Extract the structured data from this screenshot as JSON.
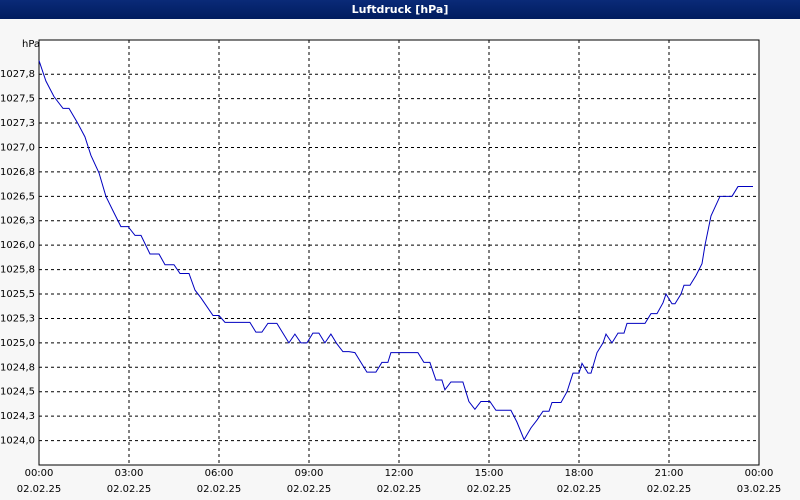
{
  "chart_data": {
    "type": "line",
    "title": "Luftdruck [hPa]",
    "y_label": "hPa",
    "color": "#0000c0",
    "grid": true,
    "x": [
      0,
      0.23,
      0.5,
      0.8,
      1.0,
      1.27,
      1.53,
      1.73,
      2.0,
      2.23,
      2.47,
      2.73,
      2.97,
      3.2,
      3.4,
      3.7,
      4.0,
      4.2,
      4.5,
      4.7,
      5.0,
      5.2,
      5.4,
      5.8,
      6.0,
      6.2,
      7.03,
      7.23,
      7.43,
      7.63,
      7.93,
      8.13,
      8.33,
      8.53,
      8.73,
      8.93,
      9.13,
      9.33,
      9.53,
      9.73,
      9.93,
      10.13,
      10.33,
      10.53,
      10.73,
      10.93,
      11.23,
      11.43,
      11.63,
      11.73,
      12.63,
      12.83,
      13.03,
      13.23,
      13.43,
      13.53,
      13.73,
      14.13,
      14.33,
      14.53,
      14.73,
      15.03,
      15.23,
      15.73,
      15.93,
      16.17,
      16.4,
      16.6,
      16.8,
      17.0,
      17.1,
      17.4,
      17.6,
      17.8,
      18.0,
      18.1,
      18.3,
      18.4,
      18.6,
      18.8,
      18.9,
      19.1,
      19.3,
      19.5,
      19.6,
      20.2,
      20.4,
      20.6,
      20.8,
      20.9,
      21.1,
      21.2,
      21.4,
      21.5,
      21.7,
      21.9,
      22.1,
      22.2,
      22.4,
      22.7,
      23.1,
      23.3,
      23.8
    ],
    "values": [
      1027.89,
      1027.68,
      1027.52,
      1027.4,
      1027.4,
      1027.26,
      1027.11,
      1026.92,
      1026.74,
      1026.5,
      1026.35,
      1026.19,
      1026.19,
      1026.1,
      1026.1,
      1025.91,
      1025.91,
      1025.8,
      1025.8,
      1025.71,
      1025.71,
      1025.54,
      1025.46,
      1025.28,
      1025.28,
      1025.21,
      1025.21,
      1025.11,
      1025.11,
      1025.2,
      1025.2,
      1025.1,
      1025.0,
      1025.09,
      1025.0,
      1025.0,
      1025.1,
      1025.1,
      1025.0,
      1025.09,
      1024.99,
      1024.91,
      1024.91,
      1024.9,
      1024.8,
      1024.7,
      1024.7,
      1024.8,
      1024.8,
      1024.9,
      1024.9,
      1024.8,
      1024.8,
      1024.62,
      1024.62,
      1024.52,
      1024.6,
      1024.6,
      1024.4,
      1024.32,
      1024.4,
      1024.4,
      1024.31,
      1024.31,
      1024.19,
      1024.01,
      1024.13,
      1024.21,
      1024.3,
      1024.3,
      1024.39,
      1024.39,
      1024.5,
      1024.69,
      1024.69,
      1024.79,
      1024.69,
      1024.69,
      1024.9,
      1025.0,
      1025.09,
      1025.0,
      1025.1,
      1025.1,
      1025.2,
      1025.2,
      1025.3,
      1025.3,
      1025.41,
      1025.5,
      1025.4,
      1025.4,
      1025.5,
      1025.59,
      1025.59,
      1025.69,
      1025.81,
      1026.0,
      1026.3,
      1026.5,
      1026.5,
      1026.6,
      1026.6
    ],
    "xlim": [
      0,
      24
    ],
    "ylim": [
      1023.75,
      1028.1
    ],
    "xticks": [
      {
        "value": 0,
        "label": "00:00"
      },
      {
        "value": 3,
        "label": "03:00"
      },
      {
        "value": 6,
        "label": "06:00"
      },
      {
        "value": 9,
        "label": "09:00"
      },
      {
        "value": 12,
        "label": "12:00"
      },
      {
        "value": 15,
        "label": "15:00"
      },
      {
        "value": 18,
        "label": "18:00"
      },
      {
        "value": 21,
        "label": "21:00"
      },
      {
        "value": 24,
        "label": "00:00"
      }
    ],
    "xtick_dates": [
      "02.02.25",
      "02.02.25",
      "02.02.25",
      "02.02.25",
      "02.02.25",
      "02.02.25",
      "02.02.25",
      "02.02.25",
      "03.02.25"
    ],
    "yticks": [
      {
        "value": 1024,
        "label": "1024,0"
      },
      {
        "value": 1024.25,
        "label": "1024,3"
      },
      {
        "value": 1024.5,
        "label": "1024,5"
      },
      {
        "value": 1024.75,
        "label": "1024,8"
      },
      {
        "value": 1025,
        "label": "1025,0"
      },
      {
        "value": 1025.25,
        "label": "1025,3"
      },
      {
        "value": 1025.5,
        "label": "1025,5"
      },
      {
        "value": 1025.75,
        "label": "1025,8"
      },
      {
        "value": 1026,
        "label": "1026,0"
      },
      {
        "value": 1026.25,
        "label": "1026,3"
      },
      {
        "value": 1026.5,
        "label": "1026,5"
      },
      {
        "value": 1026.75,
        "label": "1026,8"
      },
      {
        "value": 1027,
        "label": "1027,0"
      },
      {
        "value": 1027.25,
        "label": "1027,3"
      },
      {
        "value": 1027.5,
        "label": "1027,5"
      },
      {
        "value": 1027.75,
        "label": "1027,8"
      }
    ]
  }
}
